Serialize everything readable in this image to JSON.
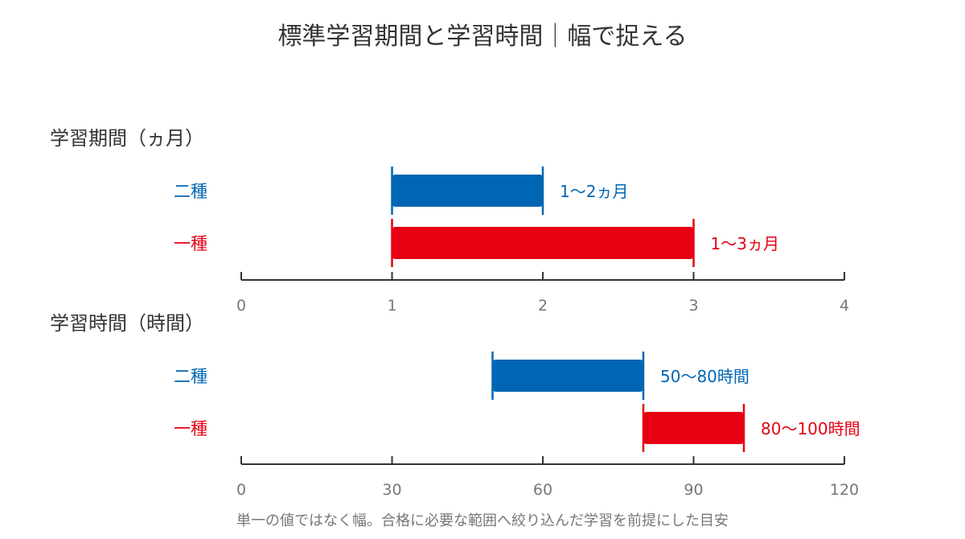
{
  "title": "標準学習期間と学習時間｜幅で捉える",
  "footnote": "単一の値ではなく幅。合格に必要な範囲へ絞り込んだ学習を前提にした目安",
  "colors": {
    "nishu": "#0066b3",
    "isshu": "#e60012",
    "axis": "#333333",
    "tick_text": "#777777"
  },
  "chart_data": [
    {
      "type": "bar",
      "orientation": "horizontal-range",
      "title": "学習期間（ヵ月）",
      "xlim": [
        0,
        4
      ],
      "xticks": [
        "0",
        "1",
        "2",
        "3",
        "4"
      ],
      "xtick_values": [
        0,
        1,
        2,
        3,
        4
      ],
      "categories": [
        "二種",
        "一種"
      ],
      "series": [
        {
          "category": "二種",
          "start": 1,
          "end": 2,
          "label": "1〜2ヵ月",
          "color": "#0066b3"
        },
        {
          "category": "一種",
          "start": 1,
          "end": 3,
          "label": "1〜3ヵ月",
          "color": "#e60012"
        }
      ]
    },
    {
      "type": "bar",
      "orientation": "horizontal-range",
      "title": "学習時間（時間）",
      "xlim": [
        0,
        120
      ],
      "xticks": [
        "0",
        "30",
        "60",
        "90",
        "120"
      ],
      "xtick_values": [
        0,
        30,
        60,
        90,
        120
      ],
      "categories": [
        "二種",
        "一種"
      ],
      "series": [
        {
          "category": "二種",
          "start": 50,
          "end": 80,
          "label": "50〜80時間",
          "color": "#0066b3"
        },
        {
          "category": "一種",
          "start": 80,
          "end": 100,
          "label": "80〜100時間",
          "color": "#e60012"
        }
      ]
    }
  ]
}
